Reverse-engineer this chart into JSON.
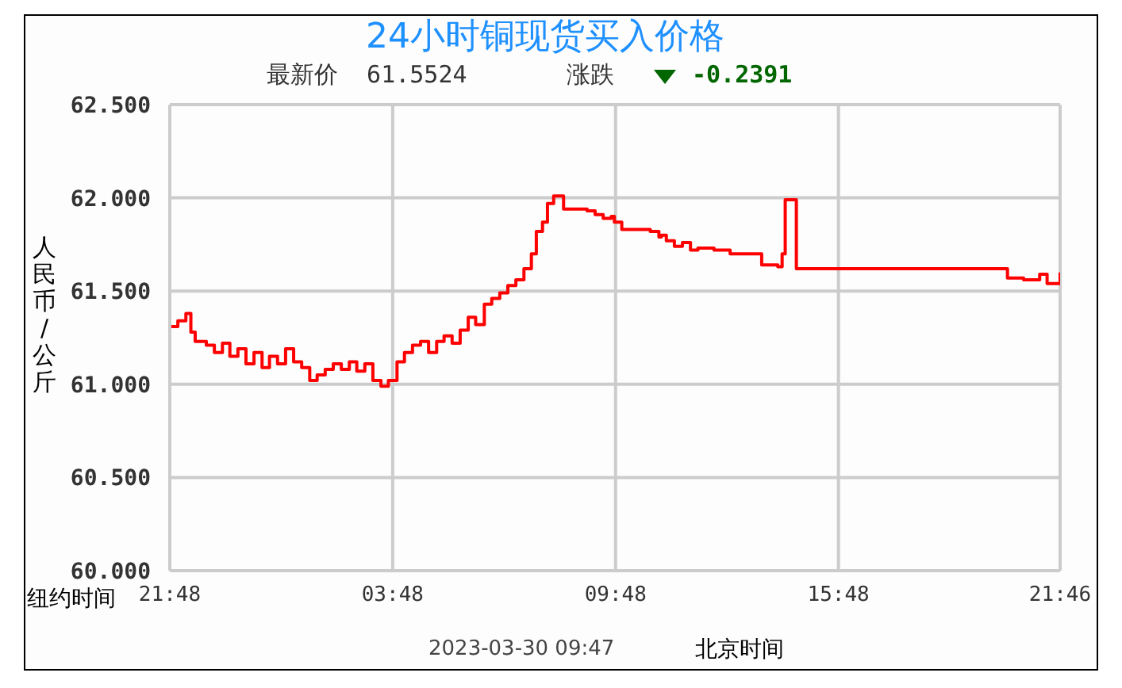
{
  "chart_data": {
    "type": "step",
    "title": "24小时铜现货买入价格",
    "subtitle": "最新价  61.5524",
    "xlabel": "纽约时间",
    "ylabel": "人民币/公斤",
    "annotations": [
      "涨跌",
      "-0.2391",
      "2023-03-30 09:47",
      "北京时间"
    ],
    "x": [
      "2023-03-28T21:48",
      "2023-03-28T22:01",
      "2023-03-28T22:14",
      "2023-03-28T22:22",
      "2023-03-28T22:29",
      "2023-03-28T22:47",
      "2023-03-28T23:00",
      "2023-03-28T23:13",
      "2023-03-28T23:25",
      "2023-03-28T23:38",
      "2023-03-28T23:51",
      "2023-03-29T00:04",
      "2023-03-29T00:17",
      "2023-03-29T00:29",
      "2023-03-29T00:42",
      "2023-03-29T00:55",
      "2023-03-29T01:08",
      "2023-03-29T01:21",
      "2023-03-29T01:34",
      "2023-03-29T01:46",
      "2023-03-29T01:59",
      "2023-03-29T02:12",
      "2023-03-29T02:25",
      "2023-03-29T02:38",
      "2023-03-29T02:50",
      "2023-03-29T03:03",
      "2023-03-29T03:16",
      "2023-03-29T03:29",
      "2023-03-29T03:41",
      "2023-03-29T03:55",
      "2023-03-29T04:07",
      "2023-03-29T04:20",
      "2023-03-29T04:33",
      "2023-03-29T04:46",
      "2023-03-29T04:59",
      "2023-03-29T05:11",
      "2023-03-29T05:24",
      "2023-03-29T05:37",
      "2023-03-29T05:50",
      "2023-03-29T06:02",
      "2023-03-29T06:16",
      "2023-03-29T06:28",
      "2023-03-29T06:41",
      "2023-03-29T06:54",
      "2023-03-29T07:07",
      "2023-03-29T07:20",
      "2023-03-29T07:32",
      "2023-03-29T07:40",
      "2023-03-29T07:50",
      "2023-03-29T07:58",
      "2023-03-29T08:08",
      "2023-03-29T08:24",
      "2023-03-29T08:37",
      "2023-03-29T09:02",
      "2023-03-29T09:15",
      "2023-03-29T09:28",
      "2023-03-29T09:41",
      "2023-03-29T09:46",
      "2023-03-29T09:58",
      "2023-03-29T10:19",
      "2023-03-29T10:44",
      "2023-03-29T10:58",
      "2023-03-29T11:02",
      "2023-03-29T11:10",
      "2023-03-29T11:23",
      "2023-03-29T11:36",
      "2023-03-29T11:49",
      "2023-03-29T12:01",
      "2023-03-29T12:27",
      "2023-03-29T12:53",
      "2023-03-29T13:19",
      "2023-03-29T13:44",
      "2023-03-29T14:10",
      "2023-03-29T14:17",
      "2023-03-29T14:22",
      "2023-03-29T14:35",
      "2023-03-29T14:40",
      "2023-03-29T16:43",
      "2023-03-29T18:52",
      "2023-03-29T20:19",
      "2023-03-29T20:21",
      "2023-03-29T20:47",
      "2023-03-29T21:00",
      "2023-03-29T21:13",
      "2023-03-29T21:25",
      "2023-03-29T21:38",
      "2023-03-29T21:46"
    ],
    "series": [
      {
        "color": "#ff0000",
        "values": [
          61.31,
          61.34,
          61.38,
          61.28,
          61.23,
          61.21,
          61.17,
          61.22,
          61.15,
          61.19,
          61.11,
          61.17,
          61.09,
          61.15,
          61.11,
          61.19,
          61.12,
          61.09,
          61.02,
          61.05,
          61.08,
          61.11,
          61.08,
          61.12,
          61.07,
          61.11,
          61.02,
          60.99,
          61.02,
          61.12,
          61.17,
          61.21,
          61.23,
          61.17,
          61.23,
          61.26,
          61.22,
          61.29,
          61.36,
          61.32,
          61.43,
          61.46,
          61.49,
          61.53,
          61.56,
          61.62,
          61.7,
          61.82,
          61.87,
          61.97,
          62.01,
          61.94,
          61.94,
          61.93,
          61.91,
          61.89,
          61.9,
          61.87,
          61.83,
          61.83,
          61.82,
          61.79,
          61.8,
          61.77,
          61.74,
          61.76,
          61.72,
          61.73,
          61.72,
          61.7,
          61.7,
          61.64,
          61.63,
          61.7,
          61.99,
          61.99,
          61.62,
          61.62,
          61.62,
          61.62,
          61.57,
          61.56,
          61.56,
          61.59,
          61.54,
          61.54,
          61.6
        ]
      }
    ],
    "xlim": [
      "2023-03-28T21:48",
      "2023-03-29T21:46"
    ],
    "xticks": [
      {
        "value": "2023-03-28T21:48",
        "label": "21:48"
      },
      {
        "value": "2023-03-29T03:48",
        "label": "03:48"
      },
      {
        "value": "2023-03-29T09:48",
        "label": "09:48"
      },
      {
        "value": "2023-03-29T15:48",
        "label": "15:48"
      },
      {
        "value": "2023-03-29T21:46",
        "label": "21:46"
      }
    ],
    "ylim": [
      60,
      62.5
    ],
    "yticks": [
      {
        "value": 60,
        "label": "60.000"
      },
      {
        "value": 60.5,
        "label": "60.500"
      },
      {
        "value": 61,
        "label": "61.000"
      },
      {
        "value": 61.5,
        "label": "61.500"
      },
      {
        "value": 62,
        "label": "62.000"
      },
      {
        "value": 62.5,
        "label": "62.500"
      }
    ],
    "grid": true,
    "marker": "none",
    "line_style": "solid"
  }
}
